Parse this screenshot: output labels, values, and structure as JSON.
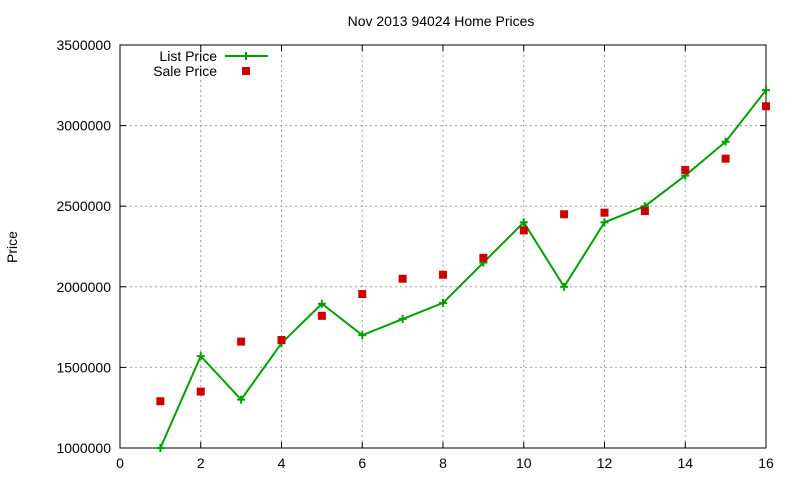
{
  "chart_data": {
    "type": "line",
    "title": "Nov 2013 94024 Home Prices",
    "xlabel": "",
    "ylabel": "Price",
    "xlim": [
      0,
      16
    ],
    "ylim": [
      1000000,
      3500000
    ],
    "xticks": [
      "0",
      "2",
      "4",
      "6",
      "8",
      "10",
      "12",
      "14",
      "16"
    ],
    "yticks": [
      "1000000",
      "1500000",
      "2000000",
      "2500000",
      "3000000",
      "3500000"
    ],
    "grid": true,
    "legend_position": "top-left",
    "x": [
      1,
      2,
      3,
      4,
      5,
      6,
      7,
      8,
      9,
      10,
      11,
      12,
      13,
      14,
      15,
      16
    ],
    "series": [
      {
        "name": "List Price",
        "style": "linespoints",
        "marker": "plus",
        "color": "#00a000",
        "values": [
          1000000,
          1570000,
          1300000,
          1650000,
          1895000,
          1700000,
          1800000,
          1900000,
          2150000,
          2400000,
          2000000,
          2400000,
          2500000,
          2690000,
          2900000,
          3220000
        ]
      },
      {
        "name": "Sale Price",
        "style": "points",
        "marker": "square",
        "color": "#cc0000",
        "values": [
          1290000,
          1350000,
          1660000,
          1670000,
          1820000,
          1955000,
          2050000,
          2075000,
          2180000,
          2350000,
          2450000,
          2460000,
          2470000,
          2725000,
          2795000,
          3120000
        ]
      }
    ]
  }
}
